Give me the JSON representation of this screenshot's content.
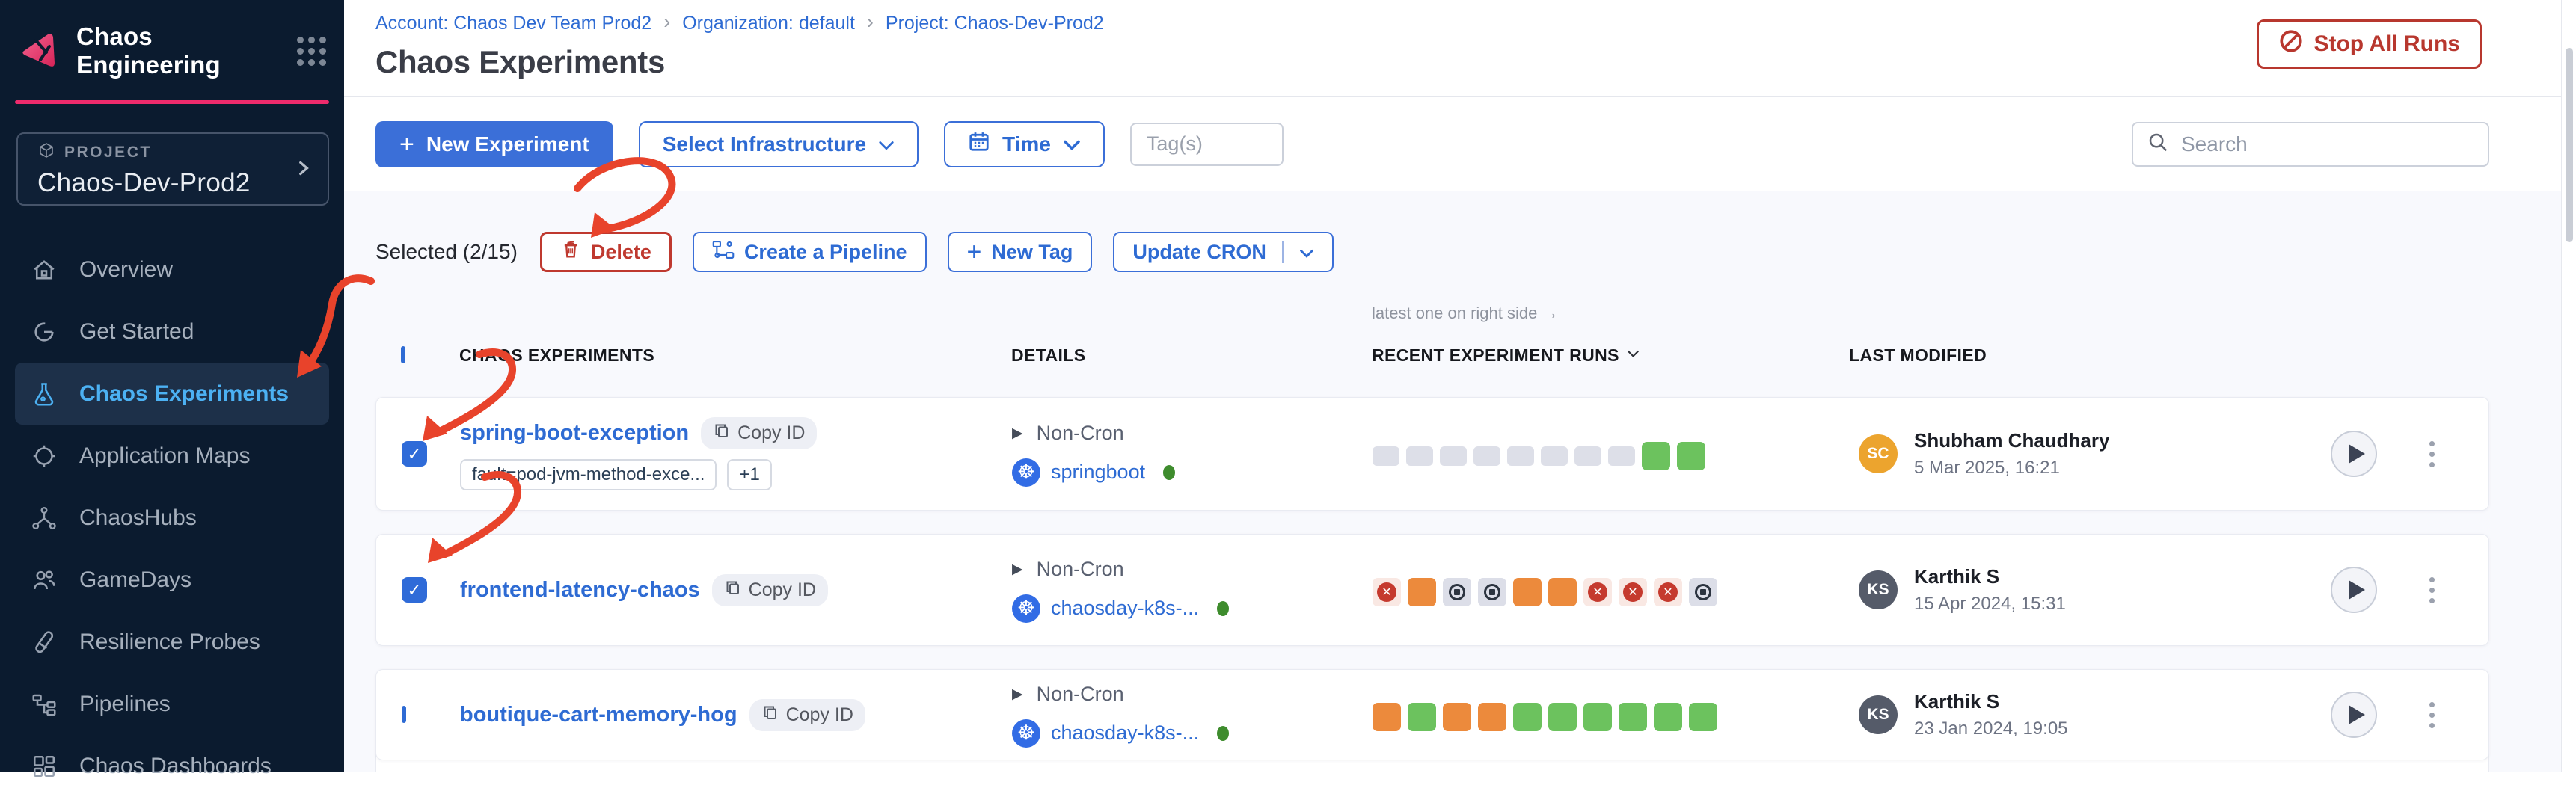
{
  "sidebar": {
    "product": "Chaos Engineering",
    "project_label": "PROJECT",
    "project_name": "Chaos-Dev-Prod2",
    "items": [
      {
        "label": "Overview",
        "icon": "home",
        "active": false
      },
      {
        "label": "Get Started",
        "icon": "progress",
        "active": false
      },
      {
        "label": "Chaos Experiments",
        "icon": "flask",
        "active": true
      },
      {
        "label": "Application Maps",
        "icon": "target",
        "active": false
      },
      {
        "label": "ChaosHubs",
        "icon": "hub",
        "active": false
      },
      {
        "label": "GameDays",
        "icon": "people",
        "active": false
      },
      {
        "label": "Resilience Probes",
        "icon": "probe",
        "active": false
      },
      {
        "label": "Pipelines",
        "icon": "pipeline",
        "active": false
      },
      {
        "label": "Chaos Dashboards",
        "icon": "dashboard",
        "active": false
      }
    ]
  },
  "breadcrumb": {
    "separator": "›",
    "links": [
      "Account: Chaos Dev Team Prod2",
      "Organization: default",
      "Project: Chaos-Dev-Prod2"
    ]
  },
  "page": {
    "title": "Chaos Experiments",
    "stop_label": "Stop All Runs"
  },
  "toolbar": {
    "new_experiment": "New Experiment",
    "select_infrastructure": "Select Infrastructure",
    "time": "Time",
    "tags_placeholder": "Tag(s)",
    "search_placeholder": "Search"
  },
  "selection": {
    "label": "Selected (2/15)",
    "delete": "Delete",
    "create_pipeline": "Create a Pipeline",
    "new_tag": "New Tag",
    "update_cron": "Update CRON"
  },
  "table": {
    "note": "latest one on right side →",
    "headers": {
      "experiments": "CHAOS EXPERIMENTS",
      "details": "DETAILS",
      "runs": "RECENT EXPERIMENT RUNS",
      "modified": "LAST MODIFIED"
    },
    "rows": [
      {
        "checked": true,
        "name": "spring-boot-exception",
        "copy_label": "Copy ID",
        "tags": [
          "fault=pod-jvm-method-exce...",
          "+1"
        ],
        "cron": "Non-Cron",
        "infra": "springboot",
        "infra_status": "active",
        "runs": [
          "none",
          "none",
          "none",
          "none",
          "none",
          "none",
          "none",
          "none",
          "completed",
          "completed"
        ],
        "user": {
          "initials": "SC",
          "name": "Shubham Chaudhary",
          "date": "5 Mar 2025, 16:21",
          "color": "#eca42e"
        }
      },
      {
        "checked": true,
        "name": "frontend-latency-chaos",
        "copy_label": "Copy ID",
        "tags": [],
        "cron": "Non-Cron",
        "infra": "chaosday-k8s-...",
        "infra_status": "active",
        "runs": [
          "failed",
          "warning",
          "stopped",
          "stopped",
          "warning",
          "warning",
          "failed",
          "failed",
          "failed",
          "stopped"
        ],
        "user": {
          "initials": "KS",
          "name": "Karthik S",
          "date": "15 Apr 2024, 15:31",
          "color": "#555b69"
        }
      },
      {
        "checked": false,
        "name": "boutique-cart-memory-hog",
        "copy_label": "Copy ID",
        "tags": [],
        "cron": "Non-Cron",
        "infra": "chaosday-k8s-...",
        "infra_status": "active",
        "runs": [
          "warning",
          "completed",
          "warning",
          "warning",
          "completed",
          "completed",
          "completed",
          "completed",
          "completed",
          "completed"
        ],
        "user": {
          "initials": "KS",
          "name": "Karthik S",
          "date": "23 Jan 2024, 19:05",
          "color": "#555b69"
        }
      }
    ]
  },
  "colors": {
    "accent_pink": "#ee2b6c",
    "primary_blue": "#3b6fd8",
    "link_blue": "#2e6bd3",
    "danger_red": "#bf392f",
    "run_completed": "#6cc25e",
    "run_warning": "#ec8a3c",
    "run_failed": "#c53a2e",
    "annotation_red": "#e8432b"
  }
}
